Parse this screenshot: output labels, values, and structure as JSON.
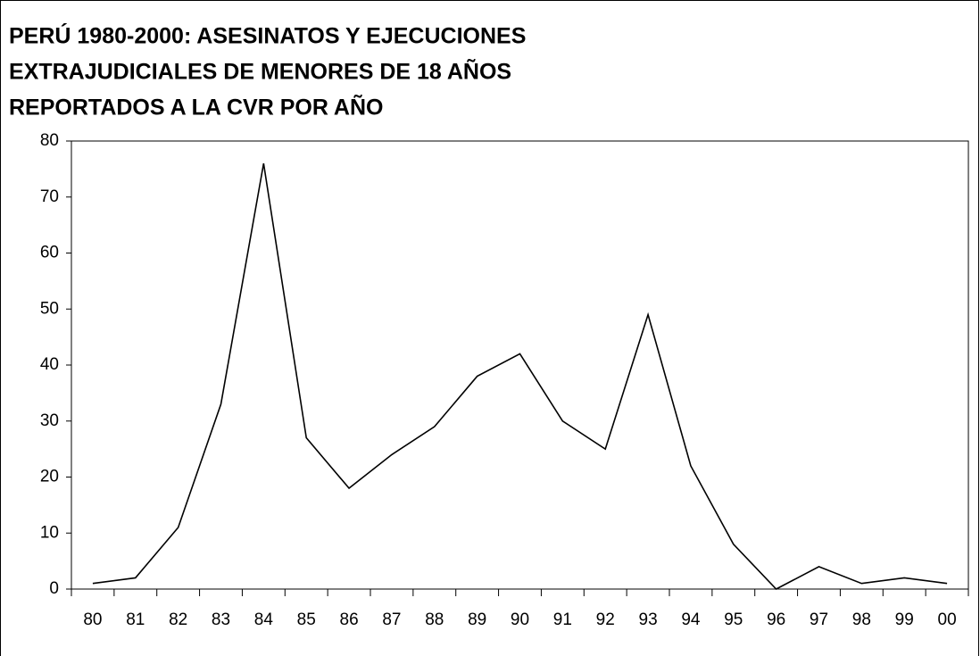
{
  "chart_data": {
    "type": "line",
    "title": [
      "PERÚ 1980-2000: ASESINATOS Y EJECUCIONES",
      "EXTRAJUDICIALES DE MENORES DE 18 AÑOS",
      "REPORTADOS A LA CVR POR AÑO"
    ],
    "categories": [
      "80",
      "81",
      "82",
      "83",
      "84",
      "85",
      "86",
      "87",
      "88",
      "89",
      "90",
      "91",
      "92",
      "93",
      "94",
      "95",
      "96",
      "97",
      "98",
      "99",
      "00"
    ],
    "values": [
      1,
      2,
      11,
      33,
      76,
      27,
      18,
      24,
      29,
      38,
      42,
      30,
      25,
      49,
      22,
      8,
      0,
      4,
      1,
      2,
      1
    ],
    "color": "#000000",
    "ylim": [
      0,
      80
    ],
    "yticks": [
      0,
      10,
      20,
      30,
      40,
      50,
      60,
      70,
      80
    ],
    "grid": false
  }
}
